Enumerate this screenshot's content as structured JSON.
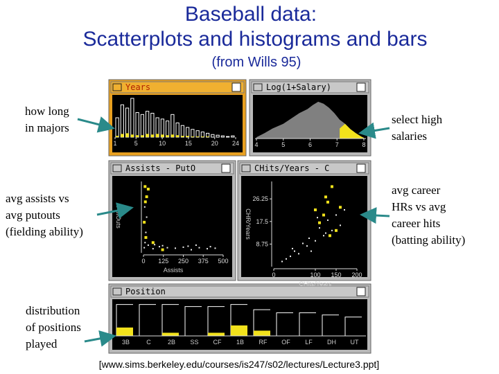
{
  "title": [
    "Baseball data:",
    "Scatterplots and histograms and bars"
  ],
  "subtitle": "(from Wills 95)",
  "annotations": [
    [
      "how long",
      "in majors"
    ],
    [
      "select high",
      "salaries"
    ],
    [
      "avg assists vs",
      "avg putouts",
      "(fielding ability)"
    ],
    [
      "avg career",
      "HRs vs avg",
      "career hits",
      "(batting ability)"
    ],
    [
      "distribution",
      "of positions",
      "played"
    ]
  ],
  "panels": {
    "years": {
      "title": "Years",
      "type": "histogram",
      "xlim": [
        1,
        24
      ],
      "xticks": [
        1,
        5,
        10,
        15,
        20,
        24
      ],
      "ylim": [
        0,
        60
      ],
      "counts": [
        30,
        50,
        45,
        60,
        38,
        35,
        40,
        37,
        30,
        28,
        25,
        35,
        22,
        18,
        15,
        12,
        10,
        8,
        6,
        4,
        3,
        2,
        1,
        2
      ],
      "selected": [
        2,
        5,
        6,
        4,
        3,
        3,
        5,
        4,
        5,
        4,
        3,
        4,
        3,
        2,
        2,
        1,
        1,
        1,
        1,
        0,
        0,
        0,
        0,
        0
      ]
    },
    "salary": {
      "title": "Log(1+Salary)",
      "type": "area",
      "xlim": [
        4,
        8
      ],
      "xticks": [
        4,
        5,
        6,
        7,
        8
      ],
      "ylim": [
        0,
        60
      ],
      "x": [
        4,
        4.3,
        4.6,
        5,
        5.3,
        5.6,
        5.9,
        6.1,
        6.3,
        6.5,
        6.7,
        6.9,
        7.1,
        7.3,
        7.5,
        7.7,
        7.9,
        8
      ],
      "density": [
        2,
        8,
        15,
        22,
        30,
        38,
        44,
        50,
        55,
        52,
        46,
        38,
        28,
        22,
        14,
        8,
        3,
        1
      ],
      "selected": [
        null,
        null,
        null,
        null,
        null,
        null,
        null,
        null,
        null,
        null,
        null,
        null,
        15,
        22,
        14,
        8,
        3,
        1
      ]
    },
    "assists": {
      "title": "Assists - PutO",
      "type": "scatter",
      "xlabel": "Assists",
      "ylabel": "PutOuts",
      "xlim": [
        0,
        500
      ],
      "xticks": [
        0,
        125,
        250,
        375,
        500
      ],
      "ylim": [
        0,
        1400
      ],
      "points": {
        "x": [
          5,
          10,
          15,
          20,
          8,
          30,
          60,
          100,
          150,
          200,
          250,
          300,
          350,
          400,
          420,
          450,
          280,
          330,
          120,
          70
        ],
        "y": [
          100,
          200,
          400,
          700,
          900,
          150,
          80,
          120,
          100,
          90,
          110,
          60,
          100,
          80,
          120,
          90,
          130,
          150,
          140,
          160
        ]
      },
      "highlighted": {
        "x": [
          10,
          20,
          5,
          30,
          15,
          60,
          120,
          12
        ],
        "y": [
          1300,
          1100,
          600,
          1250,
          300,
          200,
          60,
          1000
        ]
      }
    },
    "chits": {
      "title": "CHits/Years - C",
      "type": "scatter",
      "xlabel": "CHits/Years",
      "ylabel": "CHR/Years",
      "xlim": [
        0,
        200
      ],
      "xticks": [
        0,
        100,
        150,
        200
      ],
      "ylim": [
        0,
        33
      ],
      "yticks": [
        8.75,
        17.5,
        26.25
      ],
      "points": {
        "x": [
          20,
          40,
          60,
          80,
          100,
          120,
          140,
          160,
          30,
          50,
          70,
          90,
          110,
          130,
          150,
          170,
          45,
          85,
          125,
          105
        ],
        "y": [
          2,
          4,
          5,
          8,
          10,
          12,
          14,
          16,
          3,
          6,
          9,
          6,
          15,
          18,
          20,
          22,
          7,
          11,
          13,
          19
        ]
      },
      "highlighted": {
        "x": [
          110,
          120,
          130,
          150,
          140,
          100,
          160,
          135,
          125
        ],
        "y": [
          17,
          20,
          25,
          14,
          31,
          22,
          23,
          12,
          27
        ]
      }
    },
    "position": {
      "title": "Position",
      "type": "bar",
      "ylim": [
        0,
        35
      ],
      "categories": [
        "3B",
        "C",
        "2B",
        "SS",
        "CF",
        "1B",
        "RF",
        "OF",
        "LF",
        "DH",
        "UT"
      ],
      "counts": [
        30,
        30,
        30,
        28,
        28,
        30,
        25,
        22,
        22,
        20,
        18
      ],
      "selected": [
        8,
        0,
        3,
        0,
        3,
        10,
        5,
        0,
        0,
        0,
        0
      ]
    }
  },
  "footer": "[www.sims.berkeley.edu/courses/is247/s02/lectures/Lecture3.ppt]"
}
